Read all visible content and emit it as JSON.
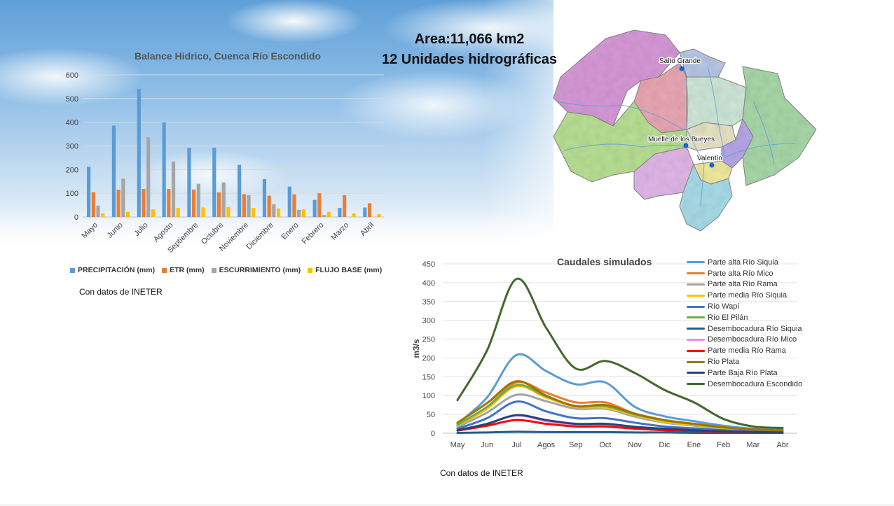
{
  "header": {
    "area_line": "Area:11,066 km2",
    "units_line": "12 Unidades hidrográficas"
  },
  "map": {
    "places": [
      "Salto Grande",
      "Muelle de los Bueyes",
      "Valentín"
    ]
  },
  "sources": {
    "left": "Con datos de INETER",
    "right": "Con datos de INETER"
  },
  "chart_data": [
    {
      "type": "bar",
      "title": "Balance Hidrico, Cuenca Río Escondido",
      "categories": [
        "Mayo",
        "Junio",
        "Julio",
        "Agosto",
        "Septiembre",
        "Octubre",
        "Noviembre",
        "Diciembre",
        "Enero",
        "Febrero",
        "Marzo",
        "Abril"
      ],
      "ylim": [
        0,
        600
      ],
      "yticks": [
        0,
        100,
        200,
        300,
        400,
        500,
        600
      ],
      "grid": true,
      "legend_position": "bottom",
      "series": [
        {
          "name": "PRECIPITACIÓN (mm)",
          "color": "#5b9bd5",
          "values": [
            212,
            386,
            540,
            400,
            292,
            292,
            220,
            160,
            128,
            72,
            38,
            40
          ]
        },
        {
          "name": "ETR (mm)",
          "color": "#ed7d31",
          "values": [
            105,
            115,
            118,
            118,
            116,
            104,
            96,
            90,
            95,
            100,
            92,
            58
          ]
        },
        {
          "name": "ESCURRIMIENTO (mm)",
          "color": "#a5a5a5",
          "values": [
            48,
            162,
            336,
            234,
            140,
            146,
            92,
            54,
            30,
            8,
            0,
            0
          ]
        },
        {
          "name": "FLUJO BASE  (mm)",
          "color": "#ffc000",
          "values": [
            15,
            22,
            32,
            38,
            40,
            42,
            38,
            36,
            32,
            22,
            15,
            12
          ]
        }
      ]
    },
    {
      "type": "line",
      "title": "Caudales simulados",
      "ylabel": "m3/s",
      "categories": [
        "May",
        "Jun",
        "Jul",
        "Agos",
        "Sep",
        "Oct",
        "Nov",
        "Dic",
        "Ene",
        "Feb",
        "Mar",
        "Abr"
      ],
      "ylim": [
        0,
        450
      ],
      "yticks": [
        0,
        50,
        100,
        150,
        200,
        250,
        300,
        350,
        400,
        450
      ],
      "grid": true,
      "legend_position": "right",
      "series": [
        {
          "name": "Parte alta Río Siquia",
          "color": "#5b9bd5",
          "values": [
            25,
            95,
            208,
            165,
            130,
            135,
            70,
            45,
            32,
            20,
            12,
            10
          ]
        },
        {
          "name": "Parte alta Río Mico",
          "color": "#ed7d31",
          "values": [
            20,
            70,
            135,
            108,
            82,
            82,
            52,
            35,
            25,
            16,
            10,
            8
          ]
        },
        {
          "name": "Parte alta Río Rama",
          "color": "#a5a5a5",
          "values": [
            16,
            55,
            102,
            85,
            65,
            65,
            44,
            28,
            20,
            13,
            8,
            6
          ]
        },
        {
          "name": "Parte media Río Siquia",
          "color": "#ffc000",
          "values": [
            20,
            65,
            125,
            95,
            70,
            68,
            48,
            30,
            22,
            14,
            9,
            7
          ]
        },
        {
          "name": "Río Wapí",
          "color": "#4472c4",
          "values": [
            12,
            40,
            84,
            58,
            40,
            40,
            28,
            18,
            13,
            8,
            5,
            4
          ]
        },
        {
          "name": "Río El Pilán",
          "color": "#70ad47",
          "values": [
            22,
            70,
            128,
            98,
            72,
            72,
            50,
            34,
            24,
            15,
            10,
            8
          ]
        },
        {
          "name": "Desembocadura Río Siquia",
          "color": "#255e91",
          "values": [
            1,
            2,
            4,
            3,
            3,
            3,
            2,
            2,
            1,
            1,
            1,
            1
          ]
        },
        {
          "name": "Desembocadura Río Mico",
          "color": "#e98ee8",
          "values": [
            8,
            25,
            47,
            32,
            22,
            22,
            15,
            10,
            7,
            5,
            3,
            2
          ]
        },
        {
          "name": "Parte media Río Rama",
          "color": "#ff0000",
          "values": [
            7,
            20,
            35,
            25,
            18,
            18,
            12,
            8,
            6,
            4,
            3,
            2
          ]
        },
        {
          "name": "Río Plata",
          "color": "#9e7500",
          "values": [
            28,
            80,
            138,
            100,
            72,
            75,
            52,
            35,
            25,
            16,
            10,
            8
          ]
        },
        {
          "name": "Parte Baja Río Plata",
          "color": "#264478",
          "values": [
            8,
            25,
            48,
            35,
            25,
            25,
            17,
            12,
            8,
            5,
            3,
            2
          ]
        },
        {
          "name": "Desembocadura Escondido",
          "color": "#43682b",
          "values": [
            88,
            220,
            410,
            280,
            172,
            192,
            160,
            115,
            82,
            38,
            18,
            14
          ]
        }
      ]
    }
  ]
}
